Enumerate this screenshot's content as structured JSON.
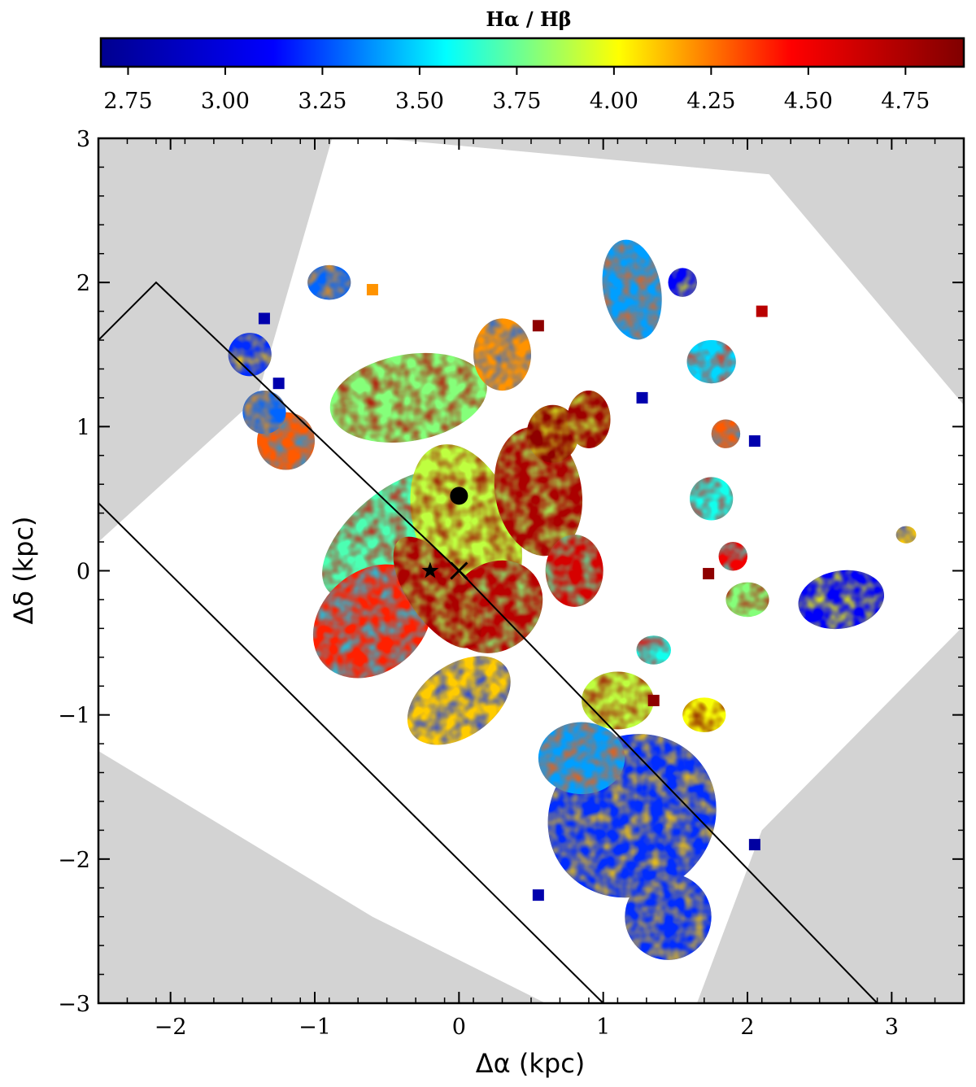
{
  "chart_data": {
    "type": "heatmap",
    "colorbar": {
      "label": "Hα / Hβ",
      "range": [
        2.68,
        4.9
      ],
      "ticks": [
        2.75,
        3.0,
        3.25,
        3.5,
        3.75,
        4.0,
        4.25,
        4.5,
        4.75
      ],
      "tick_labels": [
        "2.75",
        "3.00",
        "3.25",
        "3.50",
        "3.75",
        "4.00",
        "4.25",
        "4.50",
        "4.75"
      ],
      "colormap": [
        "#00008f",
        "#0000ff",
        "#00ffff",
        "#ffff00",
        "#ff0000",
        "#800000"
      ]
    },
    "xlabel": "Δα (kpc)",
    "ylabel": "Δδ (kpc)",
    "xlim": [
      -2.5,
      3.5
    ],
    "ylim": [
      -3,
      3
    ],
    "xticks": [
      -2,
      -1,
      0,
      1,
      2,
      3
    ],
    "xtick_labels": [
      "−2",
      "−1",
      "0",
      "1",
      "2",
      "3"
    ],
    "yticks": [
      -3,
      -2,
      -1,
      0,
      1,
      2,
      3
    ],
    "ytick_labels": [
      "−3",
      "−2",
      "−1",
      "0",
      "1",
      "2",
      "3"
    ],
    "masked_color": "#d3d3d3",
    "markers": [
      {
        "symbol": "circle",
        "x": 0.0,
        "y": 0.52
      },
      {
        "symbol": "star",
        "x": -0.2,
        "y": 0.0
      },
      {
        "symbol": "x",
        "x": 0.0,
        "y": 0.0
      }
    ],
    "slit_lines": [
      {
        "points": [
          [
            -2.5,
            1.6
          ],
          [
            -2.1,
            2.0
          ],
          [
            0.0,
            0.0
          ],
          [
            2.9,
            -3.0
          ]
        ]
      },
      {
        "points": [
          [
            -2.5,
            0.47
          ],
          [
            1.0,
            -3.0
          ]
        ]
      }
    ],
    "fov_polygon": [
      [
        -0.88,
        3.0
      ],
      [
        -0.55,
        3.0
      ],
      [
        2.15,
        2.75
      ],
      [
        3.5,
        1.15
      ],
      [
        3.5,
        -0.38
      ],
      [
        2.1,
        -1.8
      ],
      [
        1.65,
        -3.0
      ],
      [
        0.6,
        -3.0
      ],
      [
        -0.6,
        -2.4
      ],
      [
        -2.5,
        -1.25
      ],
      [
        -2.5,
        0.2
      ],
      [
        -1.4,
        1.2
      ]
    ],
    "emission_regions": [
      {
        "x": -0.45,
        "y": 0.25,
        "rx": 0.6,
        "ry": 0.3,
        "rot": -40,
        "value": 3.7
      },
      {
        "x": -0.6,
        "y": -0.35,
        "rx": 0.45,
        "ry": 0.35,
        "rot": -40,
        "value": 4.4
      },
      {
        "x": 0.05,
        "y": 0.3,
        "rx": 0.35,
        "ry": 0.6,
        "rot": -20,
        "value": 3.9
      },
      {
        "x": 0.25,
        "y": -0.25,
        "rx": 0.35,
        "ry": 0.3,
        "rot": -40,
        "value": 4.7
      },
      {
        "x": -0.15,
        "y": -0.15,
        "rx": 0.2,
        "ry": 0.45,
        "rot": -35,
        "value": 4.75
      },
      {
        "x": 0.55,
        "y": 0.55,
        "rx": 0.3,
        "ry": 0.45,
        "rot": -10,
        "value": 4.75
      },
      {
        "x": 0.65,
        "y": 0.95,
        "rx": 0.18,
        "ry": 0.2,
        "rot": 0,
        "value": 4.85
      },
      {
        "x": 0.0,
        "y": -0.9,
        "rx": 0.4,
        "ry": 0.25,
        "rot": -35,
        "value": 4.1
      },
      {
        "x": -0.35,
        "y": 1.2,
        "rx": 0.55,
        "ry": 0.3,
        "rot": -10,
        "value": 3.8
      },
      {
        "x": -1.2,
        "y": 0.9,
        "rx": 0.2,
        "ry": 0.2,
        "rot": 0,
        "value": 4.3
      },
      {
        "x": -1.35,
        "y": 1.1,
        "rx": 0.15,
        "ry": 0.15,
        "rot": 0,
        "value": 3.3
      },
      {
        "x": -1.45,
        "y": 1.5,
        "rx": 0.15,
        "ry": 0.15,
        "rot": 0,
        "value": 3.2
      },
      {
        "x": -0.9,
        "y": 2.0,
        "rx": 0.15,
        "ry": 0.12,
        "rot": 0,
        "value": 3.3
      },
      {
        "x": 0.3,
        "y": 1.5,
        "rx": 0.2,
        "ry": 0.25,
        "rot": 0,
        "value": 4.2
      },
      {
        "x": 0.9,
        "y": 1.05,
        "rx": 0.15,
        "ry": 0.2,
        "rot": 0,
        "value": 4.8
      },
      {
        "x": 0.8,
        "y": 0.0,
        "rx": 0.2,
        "ry": 0.25,
        "rot": 0,
        "value": 4.6
      },
      {
        "x": 1.2,
        "y": -1.7,
        "rx": 0.6,
        "ry": 0.55,
        "rot": -35,
        "value": 3.2
      },
      {
        "x": 0.85,
        "y": -1.3,
        "rx": 0.3,
        "ry": 0.25,
        "rot": 0,
        "value": 3.4
      },
      {
        "x": 1.45,
        "y": -2.4,
        "rx": 0.3,
        "ry": 0.3,
        "rot": 0,
        "value": 3.2
      },
      {
        "x": 1.1,
        "y": -0.9,
        "rx": 0.25,
        "ry": 0.2,
        "rot": 0,
        "value": 3.9
      },
      {
        "x": 1.2,
        "y": 1.95,
        "rx": 0.2,
        "ry": 0.35,
        "rot": -10,
        "value": 3.4
      },
      {
        "x": 1.55,
        "y": 2.0,
        "rx": 0.1,
        "ry": 0.1,
        "rot": 0,
        "value": 3.1
      },
      {
        "x": 1.75,
        "y": 1.45,
        "rx": 0.17,
        "ry": 0.15,
        "rot": 0,
        "value": 3.5
      },
      {
        "x": 1.75,
        "y": 0.5,
        "rx": 0.15,
        "ry": 0.15,
        "rot": 0,
        "value": 3.6
      },
      {
        "x": 1.85,
        "y": 0.95,
        "rx": 0.1,
        "ry": 0.1,
        "rot": 0,
        "value": 4.3
      },
      {
        "x": 2.0,
        "y": -0.2,
        "rx": 0.15,
        "ry": 0.12,
        "rot": 0,
        "value": 3.8
      },
      {
        "x": 2.65,
        "y": -0.2,
        "rx": 0.3,
        "ry": 0.2,
        "rot": -10,
        "value": 3.1
      },
      {
        "x": 1.9,
        "y": 0.1,
        "rx": 0.1,
        "ry": 0.1,
        "rot": 0,
        "value": 4.5
      },
      {
        "x": 1.7,
        "y": -1.0,
        "rx": 0.15,
        "ry": 0.12,
        "rot": 0,
        "value": 4.0
      },
      {
        "x": 1.35,
        "y": -0.55,
        "rx": 0.12,
        "ry": 0.1,
        "rot": 0,
        "value": 3.6
      },
      {
        "x": 3.1,
        "y": 0.25,
        "rx": 0.07,
        "ry": 0.06,
        "rot": 0,
        "value": 4.1
      }
    ],
    "isolated_pixels": [
      {
        "x": 1.73,
        "y": -0.02,
        "value": 4.85
      },
      {
        "x": 1.35,
        "y": -0.9,
        "value": 4.85
      },
      {
        "x": 2.05,
        "y": -1.9,
        "value": 2.75
      },
      {
        "x": -0.6,
        "y": 1.95,
        "value": 4.2
      },
      {
        "x": 0.55,
        "y": 1.7,
        "value": 4.85
      },
      {
        "x": 1.27,
        "y": 1.2,
        "value": 2.8
      },
      {
        "x": 2.05,
        "y": 0.9,
        "value": 2.8
      },
      {
        "x": -1.25,
        "y": 1.3,
        "value": 2.8
      },
      {
        "x": -1.35,
        "y": 1.75,
        "value": 2.8
      },
      {
        "x": 0.55,
        "y": -2.25,
        "value": 2.8
      },
      {
        "x": 2.1,
        "y": 1.8,
        "value": 4.7
      }
    ]
  }
}
